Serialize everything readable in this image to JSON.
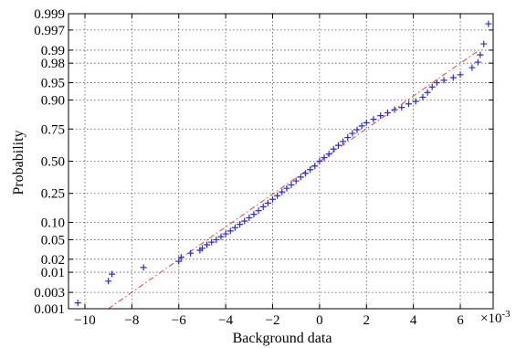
{
  "chart_data": {
    "type": "scatter",
    "subtype": "normal-probability-plot",
    "title": "",
    "xlabel": "Background data",
    "ylabel": "Probability",
    "x_multiplier_label": "×10",
    "x_multiplier_exp": "-3",
    "xlim": [
      -10.7,
      7.4
    ],
    "ylim": [
      0.001,
      0.999
    ],
    "y_scale": "normal-probability",
    "grid": true,
    "x_ticks": [
      -10,
      -8,
      -6,
      -4,
      -2,
      0,
      2,
      4,
      6
    ],
    "x_tick_labels": [
      "−10",
      "−8",
      "−6",
      "−4",
      "−2",
      "0",
      "2",
      "4",
      "6"
    ],
    "y_ticks": [
      0.001,
      0.003,
      0.01,
      0.02,
      0.05,
      0.1,
      0.25,
      0.5,
      0.75,
      0.9,
      0.95,
      0.98,
      0.99,
      0.997,
      0.999
    ],
    "y_tick_labels": [
      "0.001",
      "0.003",
      "0.01",
      "0.02",
      "0.05",
      "0.10",
      "0.25",
      "0.50",
      "0.75",
      "0.90",
      "0.95",
      "0.98",
      "0.99",
      "0.997",
      "0.999"
    ],
    "reference_line": {
      "style": "dash-dot",
      "color": "#e0453a",
      "x": [
        -9.0,
        6.8
      ],
      "y": [
        0.001,
        0.99
      ]
    },
    "series": [
      {
        "marker": "+",
        "color": "#2b2bd6",
        "points": [
          {
            "x": -10.3,
            "y": 0.0015
          },
          {
            "x": -9.0,
            "y": 0.006
          },
          {
            "x": -8.85,
            "y": 0.009
          },
          {
            "x": -7.5,
            "y": 0.013
          },
          {
            "x": -6.0,
            "y": 0.018
          },
          {
            "x": -5.9,
            "y": 0.022
          },
          {
            "x": -5.5,
            "y": 0.027
          },
          {
            "x": -5.1,
            "y": 0.031
          },
          {
            "x": -5.0,
            "y": 0.034
          },
          {
            "x": -4.8,
            "y": 0.04
          },
          {
            "x": -4.6,
            "y": 0.045
          },
          {
            "x": -4.4,
            "y": 0.05
          },
          {
            "x": -4.2,
            "y": 0.057
          },
          {
            "x": -4.0,
            "y": 0.064
          },
          {
            "x": -3.8,
            "y": 0.072
          },
          {
            "x": -3.6,
            "y": 0.082
          },
          {
            "x": -3.4,
            "y": 0.093
          },
          {
            "x": -3.2,
            "y": 0.105
          },
          {
            "x": -3.0,
            "y": 0.118
          },
          {
            "x": -2.8,
            "y": 0.133
          },
          {
            "x": -2.6,
            "y": 0.15
          },
          {
            "x": -2.4,
            "y": 0.17
          },
          {
            "x": -2.2,
            "y": 0.19
          },
          {
            "x": -2.0,
            "y": 0.212
          },
          {
            "x": -1.8,
            "y": 0.235
          },
          {
            "x": -1.6,
            "y": 0.26
          },
          {
            "x": -1.4,
            "y": 0.285
          },
          {
            "x": -1.2,
            "y": 0.31
          },
          {
            "x": -1.0,
            "y": 0.34
          },
          {
            "x": -0.8,
            "y": 0.37
          },
          {
            "x": -0.6,
            "y": 0.4
          },
          {
            "x": -0.4,
            "y": 0.43
          },
          {
            "x": -0.2,
            "y": 0.46
          },
          {
            "x": 0.0,
            "y": 0.5
          },
          {
            "x": 0.2,
            "y": 0.53
          },
          {
            "x": 0.4,
            "y": 0.56
          },
          {
            "x": 0.6,
            "y": 0.6
          },
          {
            "x": 0.8,
            "y": 0.63
          },
          {
            "x": 1.0,
            "y": 0.66
          },
          {
            "x": 1.2,
            "y": 0.69
          },
          {
            "x": 1.4,
            "y": 0.72
          },
          {
            "x": 1.6,
            "y": 0.745
          },
          {
            "x": 1.8,
            "y": 0.77
          },
          {
            "x": 2.0,
            "y": 0.79
          },
          {
            "x": 2.3,
            "y": 0.81
          },
          {
            "x": 2.6,
            "y": 0.83
          },
          {
            "x": 2.9,
            "y": 0.845
          },
          {
            "x": 3.2,
            "y": 0.86
          },
          {
            "x": 3.5,
            "y": 0.87
          },
          {
            "x": 3.8,
            "y": 0.885
          },
          {
            "x": 4.1,
            "y": 0.895
          },
          {
            "x": 4.4,
            "y": 0.91
          },
          {
            "x": 4.6,
            "y": 0.925
          },
          {
            "x": 4.8,
            "y": 0.94
          },
          {
            "x": 5.0,
            "y": 0.95
          },
          {
            "x": 5.3,
            "y": 0.955
          },
          {
            "x": 5.7,
            "y": 0.96
          },
          {
            "x": 6.0,
            "y": 0.965
          },
          {
            "x": 6.5,
            "y": 0.975
          },
          {
            "x": 6.75,
            "y": 0.981
          },
          {
            "x": 6.85,
            "y": 0.987
          },
          {
            "x": 7.0,
            "y": 0.993
          },
          {
            "x": 7.2,
            "y": 0.998
          }
        ]
      }
    ]
  }
}
